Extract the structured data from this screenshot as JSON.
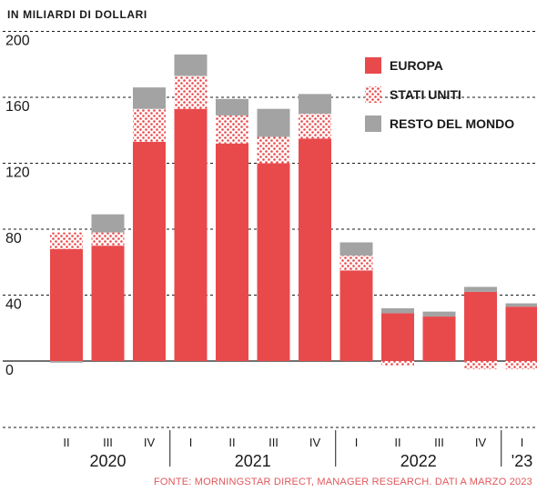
{
  "chart_data": {
    "type": "bar",
    "stacked": true,
    "unit_label": "IN MILIARDI DI DOLLARI",
    "source": "FONTE: MORNINGSTAR DIRECT, MANAGER RESEARCH. DATI A MARZO 2023",
    "ylim": [
      -40,
      200
    ],
    "yticks": [
      0,
      40,
      80,
      120,
      160,
      200
    ],
    "grid": true,
    "legend_position": "top-right",
    "categories": [
      "II",
      "III",
      "IV",
      "I",
      "II",
      "III",
      "IV",
      "I",
      "II",
      "III",
      "IV",
      "I"
    ],
    "years": [
      {
        "label": "2020",
        "span": [
          0,
          2
        ]
      },
      {
        "label": "2021",
        "span": [
          3,
          6
        ]
      },
      {
        "label": "2022",
        "span": [
          7,
          10
        ]
      },
      {
        "label": "'23",
        "span": [
          11,
          11
        ]
      }
    ],
    "series": [
      {
        "name": "EUROPA",
        "color": "#e84a4c",
        "pattern": "solid",
        "values": [
          68,
          70,
          133,
          153,
          132,
          120,
          135,
          55,
          29,
          27,
          42,
          33
        ]
      },
      {
        "name": "STATI UNITI",
        "color": "#e84a4c",
        "pattern": "dots",
        "values": [
          10,
          8,
          20,
          20,
          17,
          16,
          15,
          9,
          -3,
          0,
          -5,
          -5
        ]
      },
      {
        "name": "RESTO DEL MONDO",
        "color": "#a3a3a3",
        "pattern": "solid",
        "values": [
          -1,
          11,
          13,
          13,
          10,
          17,
          12,
          8,
          3,
          3,
          3,
          2
        ]
      }
    ]
  }
}
